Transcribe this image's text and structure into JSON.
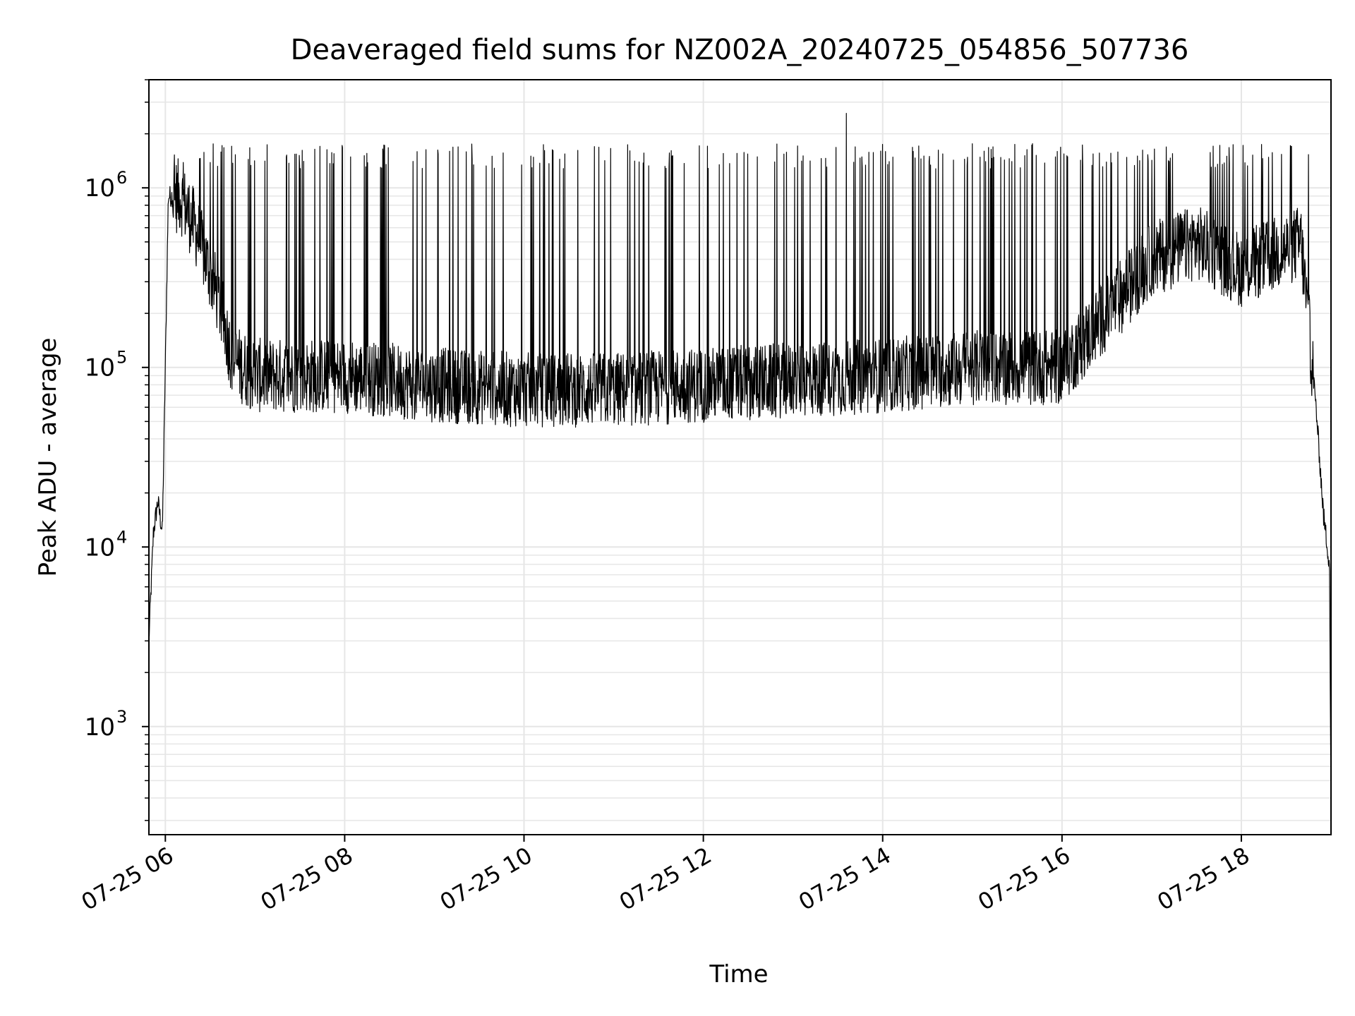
{
  "chart_data": {
    "type": "line",
    "title": "Deaveraged field sums for NZ002A_20240725_054856_507736",
    "xlabel": "Time",
    "ylabel": "Peak ADU - average",
    "yscale": "log",
    "ylim": [
      250,
      4000000
    ],
    "xlim": [
      "07-25 05:49",
      "07-25 19:00"
    ],
    "grid": true,
    "line_color": "#000000",
    "x_ticks": [
      "07-25 06",
      "07-25 08",
      "07-25 10",
      "07-25 12",
      "07-25 14",
      "07-25 16",
      "07-25 18"
    ],
    "x_tick_times": [
      "07-25 06:00",
      "07-25 08:00",
      "07-25 10:00",
      "07-25 12:00",
      "07-25 14:00",
      "07-25 16:00",
      "07-25 18:00"
    ],
    "y_ticks": [
      {
        "base": "10",
        "exp": "3",
        "value": 1000
      },
      {
        "base": "10",
        "exp": "4",
        "value": 10000
      },
      {
        "base": "10",
        "exp": "5",
        "value": 100000
      },
      {
        "base": "10",
        "exp": "6",
        "value": 1000000
      }
    ],
    "series": [
      {
        "values_approx": [
          {
            "time": "07-25 05:49",
            "value": 3000
          },
          {
            "time": "07-25 05:52",
            "value": 12000
          },
          {
            "time": "07-25 05:55",
            "value": 18000
          },
          {
            "time": "07-25 05:58",
            "value": 12000
          },
          {
            "time": "07-25 06:02",
            "value": 900000
          },
          {
            "time": "07-25 06:10",
            "value": 900000
          },
          {
            "time": "07-25 06:20",
            "value": 600000
          },
          {
            "time": "07-25 06:35",
            "value": 250000
          },
          {
            "time": "07-25 06:45",
            "value": 110000
          },
          {
            "time": "07-25 07:00",
            "value": 90000
          },
          {
            "time": "07-25 08:00",
            "value": 90000
          },
          {
            "time": "07-25 09:00",
            "value": 80000
          },
          {
            "time": "07-25 10:00",
            "value": 75000
          },
          {
            "time": "07-25 11:00",
            "value": 75000
          },
          {
            "time": "07-25 12:00",
            "value": 80000
          },
          {
            "time": "07-25 13:00",
            "value": 85000
          },
          {
            "time": "07-25 14:00",
            "value": 90000
          },
          {
            "time": "07-25 15:00",
            "value": 100000
          },
          {
            "time": "07-25 16:00",
            "value": 100000
          },
          {
            "time": "07-25 16:30",
            "value": 200000
          },
          {
            "time": "07-25 17:00",
            "value": 400000
          },
          {
            "time": "07-25 17:30",
            "value": 500000
          },
          {
            "time": "07-25 18:00",
            "value": 350000
          },
          {
            "time": "07-25 18:40",
            "value": 500000
          },
          {
            "time": "07-25 18:50",
            "value": 60000
          },
          {
            "time": "07-25 18:55",
            "value": 15000
          },
          {
            "time": "07-25 18:59",
            "value": 8000
          },
          {
            "time": "07-25 19:00",
            "value": 350
          }
        ],
        "spike_level": 1500000,
        "spike_max": 2600000
      }
    ]
  }
}
